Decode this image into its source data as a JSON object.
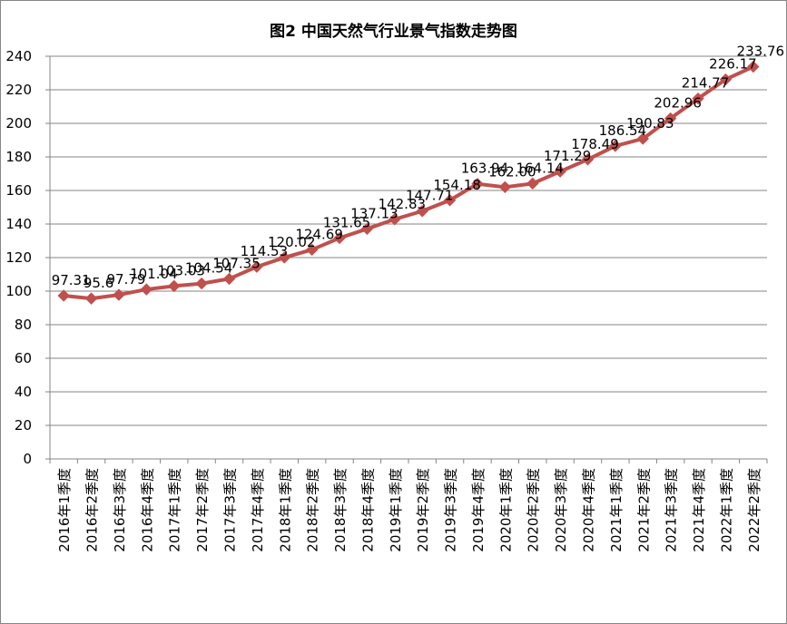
{
  "chart_data": {
    "type": "line",
    "title": "图2  中国天然气行业景气指数走势图",
    "categories": [
      "2016年1季度",
      "2016年2季度",
      "2016年3季度",
      "2016年4季度",
      "2017年1季度",
      "2017年2季度",
      "2017年3季度",
      "2017年4季度",
      "2018年1季度",
      "2018年2季度",
      "2018年3季度",
      "2018年4季度",
      "2019年1季度",
      "2019年2季度",
      "2019年3季度",
      "2019年4季度",
      "2020年1季度",
      "2020年2季度",
      "2020年3季度",
      "2020年4季度",
      "2021年1季度",
      "2021年2季度",
      "2021年3季度",
      "2021年4季度",
      "2022年1季度",
      "2022年2季度"
    ],
    "series": [
      {
        "values": [
          97.31,
          95.6,
          97.79,
          101.04,
          103.03,
          104.54,
          107.35,
          114.53,
          120.02,
          124.69,
          131.65,
          137.13,
          142.83,
          147.71,
          154.18,
          163.94,
          162.0,
          164.14,
          171.29,
          178.49,
          186.54,
          190.83,
          202.96,
          214.77,
          226.17,
          233.76
        ],
        "labels": [
          "97.31",
          "95.6",
          "97.79",
          "101.04",
          "103.03",
          "104.54",
          "107.35",
          "114.53",
          "120.02",
          "124.69",
          "131.65",
          "137.13",
          "142.83",
          "147.71",
          "154.18",
          "163.94",
          "162.00",
          "164.14",
          "171.29",
          "178.49",
          "186.54",
          "190.83",
          "202.96",
          "214.77",
          "226.17",
          "233.76"
        ],
        "color": "#C0504D"
      }
    ],
    "ylim": [
      0,
      240
    ],
    "yticks": [
      0,
      20,
      40,
      60,
      80,
      100,
      120,
      140,
      160,
      180,
      200,
      220,
      240
    ],
    "grid": true,
    "legend": "none"
  }
}
